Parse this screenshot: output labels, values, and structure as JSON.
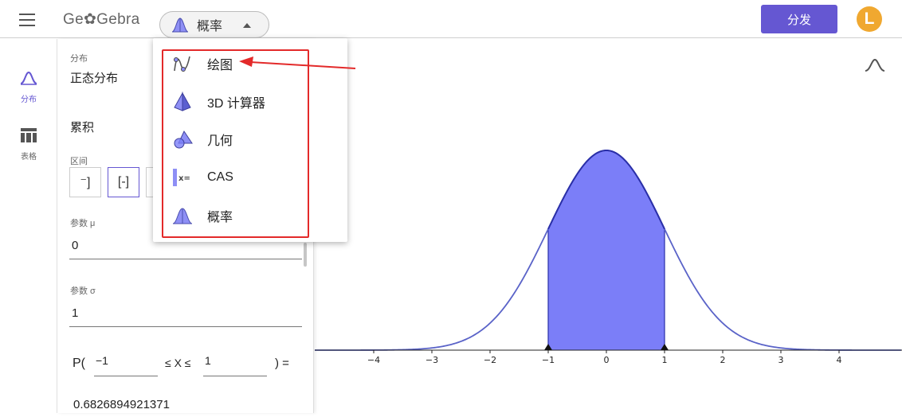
{
  "header": {
    "logo": "Ge✿Gebra",
    "app_selector_label": "概率",
    "share_label": "分发",
    "avatar_letter": "L"
  },
  "sidenav": {
    "items": [
      {
        "label": "分布",
        "icon": "bell-curve-icon",
        "active": true
      },
      {
        "label": "表格",
        "icon": "table-icon",
        "active": false
      }
    ]
  },
  "panel": {
    "distribution_label": "分布",
    "distribution_value": "正态分布",
    "cumulative_label": "累积",
    "interval_label": "区间",
    "interval_buttons": [
      "⁻]",
      "[-]",
      "[-"
    ],
    "mu_label": "参数 μ",
    "mu_value": "0",
    "sigma_label": "参数 σ",
    "sigma_value": "1",
    "prob_prefix": "P(",
    "lower_bound": "−1",
    "middle_text": "≤ X ≤",
    "upper_bound": "1",
    "prob_suffix": ") =",
    "result": "0.6826894921371"
  },
  "dropdown": {
    "items": [
      {
        "label": "绘图",
        "icon": "graphing-icon"
      },
      {
        "label": "3D 计算器",
        "icon": "3d-calculator-icon"
      },
      {
        "label": "几何",
        "icon": "geometry-icon"
      },
      {
        "label": "CAS",
        "icon": "cas-icon"
      },
      {
        "label": "概率",
        "icon": "probability-icon"
      }
    ]
  },
  "chart_data": {
    "type": "area",
    "title": "",
    "distribution": "normal",
    "mu": 0,
    "sigma": 1,
    "shaded_interval": [
      -1,
      1
    ],
    "x_ticks": [
      "−4",
      "−3",
      "−2",
      "−1",
      "0",
      "1",
      "2",
      "3",
      "4"
    ],
    "x_tick_values": [
      -4,
      -3,
      -2,
      -1,
      0,
      1,
      2,
      3,
      4
    ],
    "xlim": [
      -5,
      5.3
    ],
    "ylim": [
      0,
      0.45
    ],
    "curve_color": "#5a63c8",
    "fill_color": "#7b7ef8"
  },
  "colors": {
    "accent": "#6557d2",
    "avatar": "#f0a830",
    "annotation_red": "#e32a2a"
  }
}
